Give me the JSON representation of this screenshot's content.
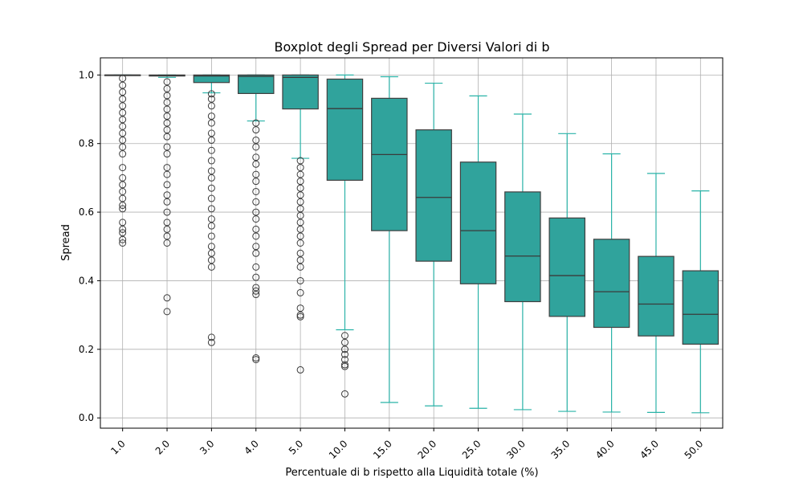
{
  "chart_data": {
    "type": "box",
    "title": "Boxplot degli Spread per Diversi Valori di b",
    "xlabel": "Percentuale di b rispetto alla Liquidità totale (%)",
    "ylabel": "Spread",
    "ylim": [
      -0.03,
      1.05
    ],
    "yticks": [
      "0.0",
      "0.2",
      "0.4",
      "0.6",
      "0.8",
      "1.0"
    ],
    "grid": true,
    "colors": {
      "box_fill": "#30a39c",
      "whisker": "#2ab3a8",
      "median": "#3a3a3a",
      "outlier": "#3a3a3a"
    },
    "categories": [
      "1.0",
      "2.0",
      "3.0",
      "4.0",
      "5.0",
      "10.0",
      "15.0",
      "20.0",
      "25.0",
      "30.0",
      "35.0",
      "40.0",
      "45.0",
      "50.0"
    ],
    "boxes": [
      {
        "whislo": 0.999,
        "q1": 0.999,
        "med": 1.0,
        "q3": 1.0,
        "whishi": 1.0,
        "fliers": [
          0.51,
          0.52,
          0.54,
          0.55,
          0.57,
          0.61,
          0.62,
          0.64,
          0.66,
          0.68,
          0.7,
          0.73,
          0.77,
          0.79,
          0.81,
          0.83,
          0.85,
          0.87,
          0.89,
          0.91,
          0.93,
          0.95,
          0.97,
          0.99
        ]
      },
      {
        "whislo": 0.993,
        "q1": 0.997,
        "med": 0.999,
        "q3": 1.0,
        "whishi": 1.0,
        "fliers": [
          0.31,
          0.35,
          0.51,
          0.53,
          0.55,
          0.57,
          0.6,
          0.63,
          0.65,
          0.68,
          0.71,
          0.73,
          0.77,
          0.79,
          0.82,
          0.84,
          0.86,
          0.88,
          0.9,
          0.92,
          0.94,
          0.96,
          0.98
        ]
      },
      {
        "whislo": 0.948,
        "q1": 0.978,
        "med": 0.997,
        "q3": 1.0,
        "whishi": 1.0,
        "fliers": [
          0.22,
          0.235,
          0.44,
          0.46,
          0.48,
          0.5,
          0.53,
          0.56,
          0.58,
          0.61,
          0.64,
          0.67,
          0.7,
          0.72,
          0.75,
          0.78,
          0.81,
          0.83,
          0.86,
          0.88,
          0.91,
          0.93,
          0.945
        ]
      },
      {
        "whislo": 0.866,
        "q1": 0.946,
        "med": 0.996,
        "q3": 1.0,
        "whishi": 1.0,
        "fliers": [
          0.17,
          0.175,
          0.36,
          0.37,
          0.38,
          0.41,
          0.44,
          0.48,
          0.5,
          0.53,
          0.55,
          0.58,
          0.6,
          0.63,
          0.66,
          0.69,
          0.71,
          0.74,
          0.76,
          0.79,
          0.81,
          0.84,
          0.86
        ]
      },
      {
        "whislo": 0.757,
        "q1": 0.901,
        "med": 0.993,
        "q3": 1.0,
        "whishi": 1.0,
        "fliers": [
          0.14,
          0.295,
          0.3,
          0.32,
          0.365,
          0.4,
          0.44,
          0.46,
          0.48,
          0.51,
          0.53,
          0.55,
          0.57,
          0.59,
          0.61,
          0.63,
          0.65,
          0.67,
          0.69,
          0.71,
          0.73,
          0.75
        ]
      },
      {
        "whislo": 0.257,
        "q1": 0.693,
        "med": 0.902,
        "q3": 0.988,
        "whishi": 1.0,
        "fliers": [
          0.07,
          0.15,
          0.155,
          0.17,
          0.185,
          0.2,
          0.22,
          0.24
        ]
      },
      {
        "whislo": 0.045,
        "q1": 0.546,
        "med": 0.768,
        "q3": 0.932,
        "whishi": 0.995,
        "fliers": []
      },
      {
        "whislo": 0.035,
        "q1": 0.457,
        "med": 0.643,
        "q3": 0.84,
        "whishi": 0.976,
        "fliers": []
      },
      {
        "whislo": 0.028,
        "q1": 0.391,
        "med": 0.546,
        "q3": 0.746,
        "whishi": 0.939,
        "fliers": []
      },
      {
        "whislo": 0.024,
        "q1": 0.339,
        "med": 0.472,
        "q3": 0.659,
        "whishi": 0.886,
        "fliers": []
      },
      {
        "whislo": 0.019,
        "q1": 0.296,
        "med": 0.415,
        "q3": 0.583,
        "whishi": 0.829,
        "fliers": []
      },
      {
        "whislo": 0.017,
        "q1": 0.264,
        "med": 0.368,
        "q3": 0.521,
        "whishi": 0.77,
        "fliers": []
      },
      {
        "whislo": 0.016,
        "q1": 0.239,
        "med": 0.332,
        "q3": 0.471,
        "whishi": 0.713,
        "fliers": []
      },
      {
        "whislo": 0.015,
        "q1": 0.215,
        "med": 0.302,
        "q3": 0.429,
        "whishi": 0.662,
        "fliers": []
      }
    ]
  }
}
